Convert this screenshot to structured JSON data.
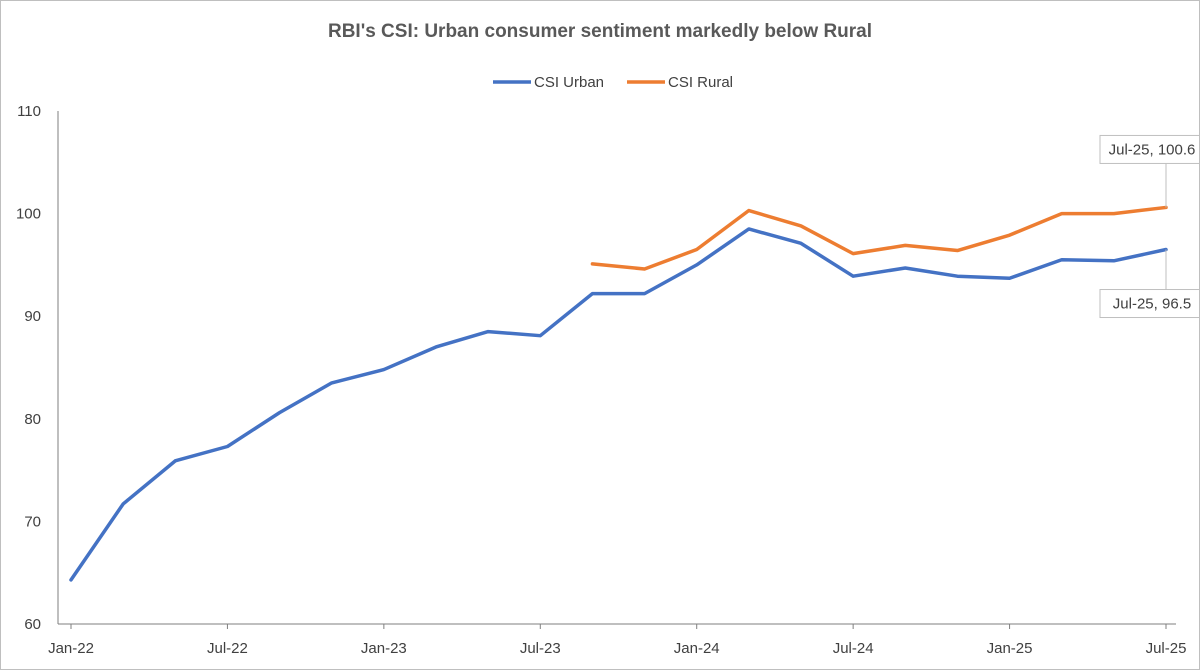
{
  "chart_data": {
    "type": "line",
    "title": "RBI's CSI: Urban consumer sentiment markedly below Rural",
    "xlabel": "",
    "ylabel": "",
    "ylim": [
      60,
      110
    ],
    "yticks": [
      60,
      70,
      80,
      90,
      100,
      110
    ],
    "x": [
      "Jan-22",
      "Mar-22",
      "May-22",
      "Jul-22",
      "Sep-22",
      "Nov-22",
      "Jan-23",
      "Mar-23",
      "May-23",
      "Jul-23",
      "Sep-23",
      "Nov-23",
      "Jan-24",
      "Mar-24",
      "May-24",
      "Jul-24",
      "Sep-24",
      "Nov-24",
      "Jan-25",
      "Mar-25",
      "May-25",
      "Jul-25"
    ],
    "xtick_labels": [
      "Jan-22",
      "Jul-22",
      "Jan-23",
      "Jul-23",
      "Jan-24",
      "Jul-24",
      "Jan-25",
      "Jul-25"
    ],
    "grid": false,
    "legend": "top-center",
    "series": [
      {
        "name": "CSI Urban",
        "color": "#4472c4",
        "values": [
          64.3,
          71.7,
          75.9,
          77.3,
          80.6,
          83.5,
          84.8,
          87.0,
          88.5,
          88.1,
          92.2,
          92.2,
          95.0,
          98.5,
          97.1,
          93.9,
          94.7,
          93.9,
          93.7,
          95.5,
          95.4,
          96.5
        ]
      },
      {
        "name": "CSI Rural",
        "color": "#ed7d31",
        "values": [
          null,
          null,
          null,
          null,
          null,
          null,
          null,
          null,
          null,
          null,
          95.1,
          94.6,
          96.5,
          100.3,
          98.8,
          96.1,
          96.9,
          96.4,
          97.9,
          100.0,
          100.0,
          100.6
        ]
      }
    ],
    "annotations": [
      {
        "series": "CSI Rural",
        "x": "Jul-25",
        "y": 100.6,
        "text": "Jul-25, 100.6",
        "placement": "above"
      },
      {
        "series": "CSI Urban",
        "x": "Jul-25",
        "y": 96.5,
        "text": "Jul-25, 96.5",
        "placement": "below"
      }
    ]
  }
}
